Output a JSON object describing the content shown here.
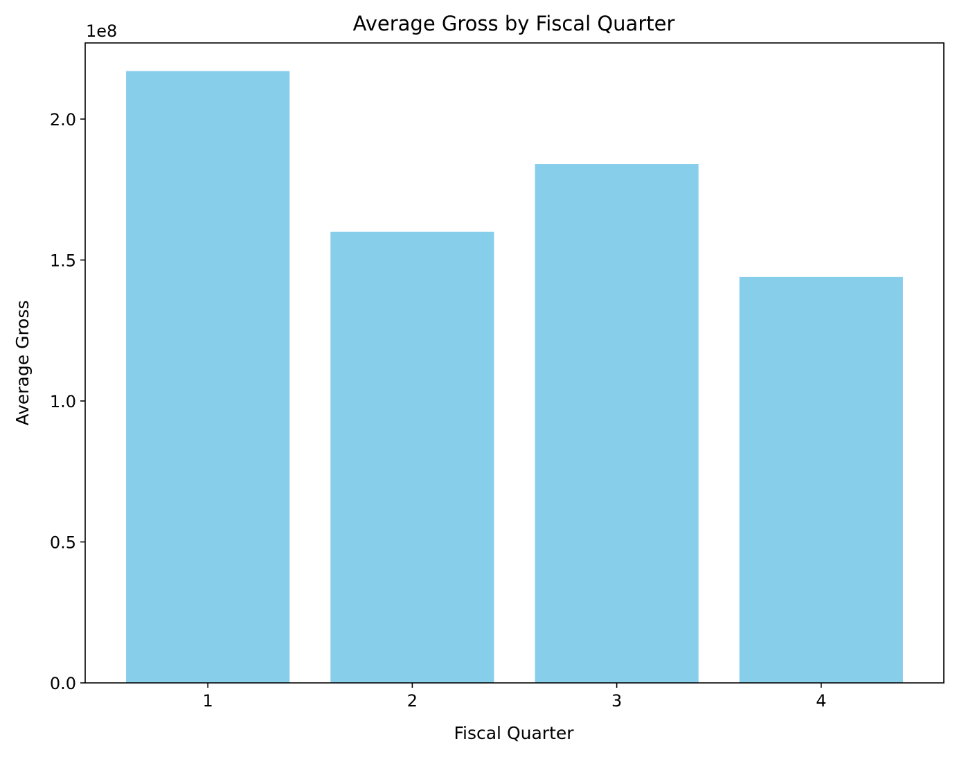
{
  "chart_data": {
    "type": "bar",
    "title": "Average Gross by Fiscal Quarter",
    "xlabel": "Fiscal Quarter",
    "ylabel": "Average Gross",
    "y_offset_label": "1e8",
    "categories": [
      "1",
      "2",
      "3",
      "4"
    ],
    "values": [
      217000000,
      160000000,
      184000000,
      144000000
    ],
    "ylim": [
      0,
      227000000
    ],
    "yticks": [
      0,
      50000000,
      100000000,
      150000000,
      200000000
    ],
    "ytick_labels": [
      "0.0",
      "0.5",
      "1.0",
      "1.5",
      "2.0"
    ],
    "bar_color": "#87ceeb",
    "grid": false,
    "legend": "none"
  }
}
